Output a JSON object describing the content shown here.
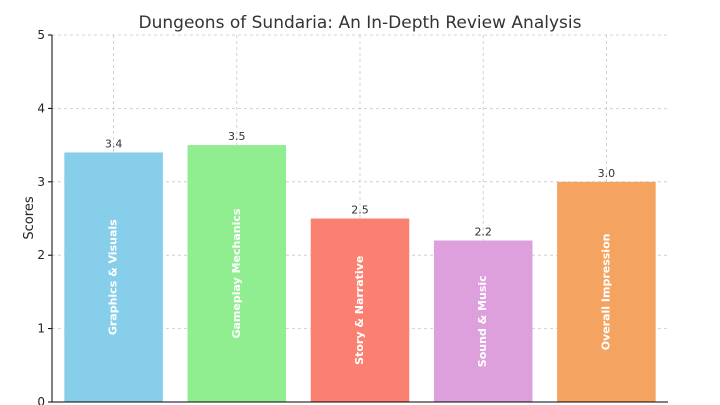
{
  "chart_data": {
    "type": "bar",
    "title": "Dungeons of Sundaria: An In-Depth Review Analysis",
    "xlabel": "",
    "ylabel": "Scores",
    "ylim": [
      0,
      5
    ],
    "yticks": [
      0,
      1,
      2,
      3,
      4,
      5
    ],
    "grid": true,
    "categories": [
      "Graphics & Visuals",
      "Gameplay Mechanics",
      "Story & Narrative",
      "Sound & Music",
      "Overall Impression"
    ],
    "values": [
      3.4,
      3.5,
      2.5,
      2.2,
      3.0
    ],
    "value_labels": [
      "3.4",
      "3.5",
      "2.5",
      "2.2",
      "3.0"
    ],
    "colors": [
      "#87CEEB",
      "#90EE90",
      "#FA8072",
      "#DDA0DD",
      "#F4A460"
    ]
  }
}
